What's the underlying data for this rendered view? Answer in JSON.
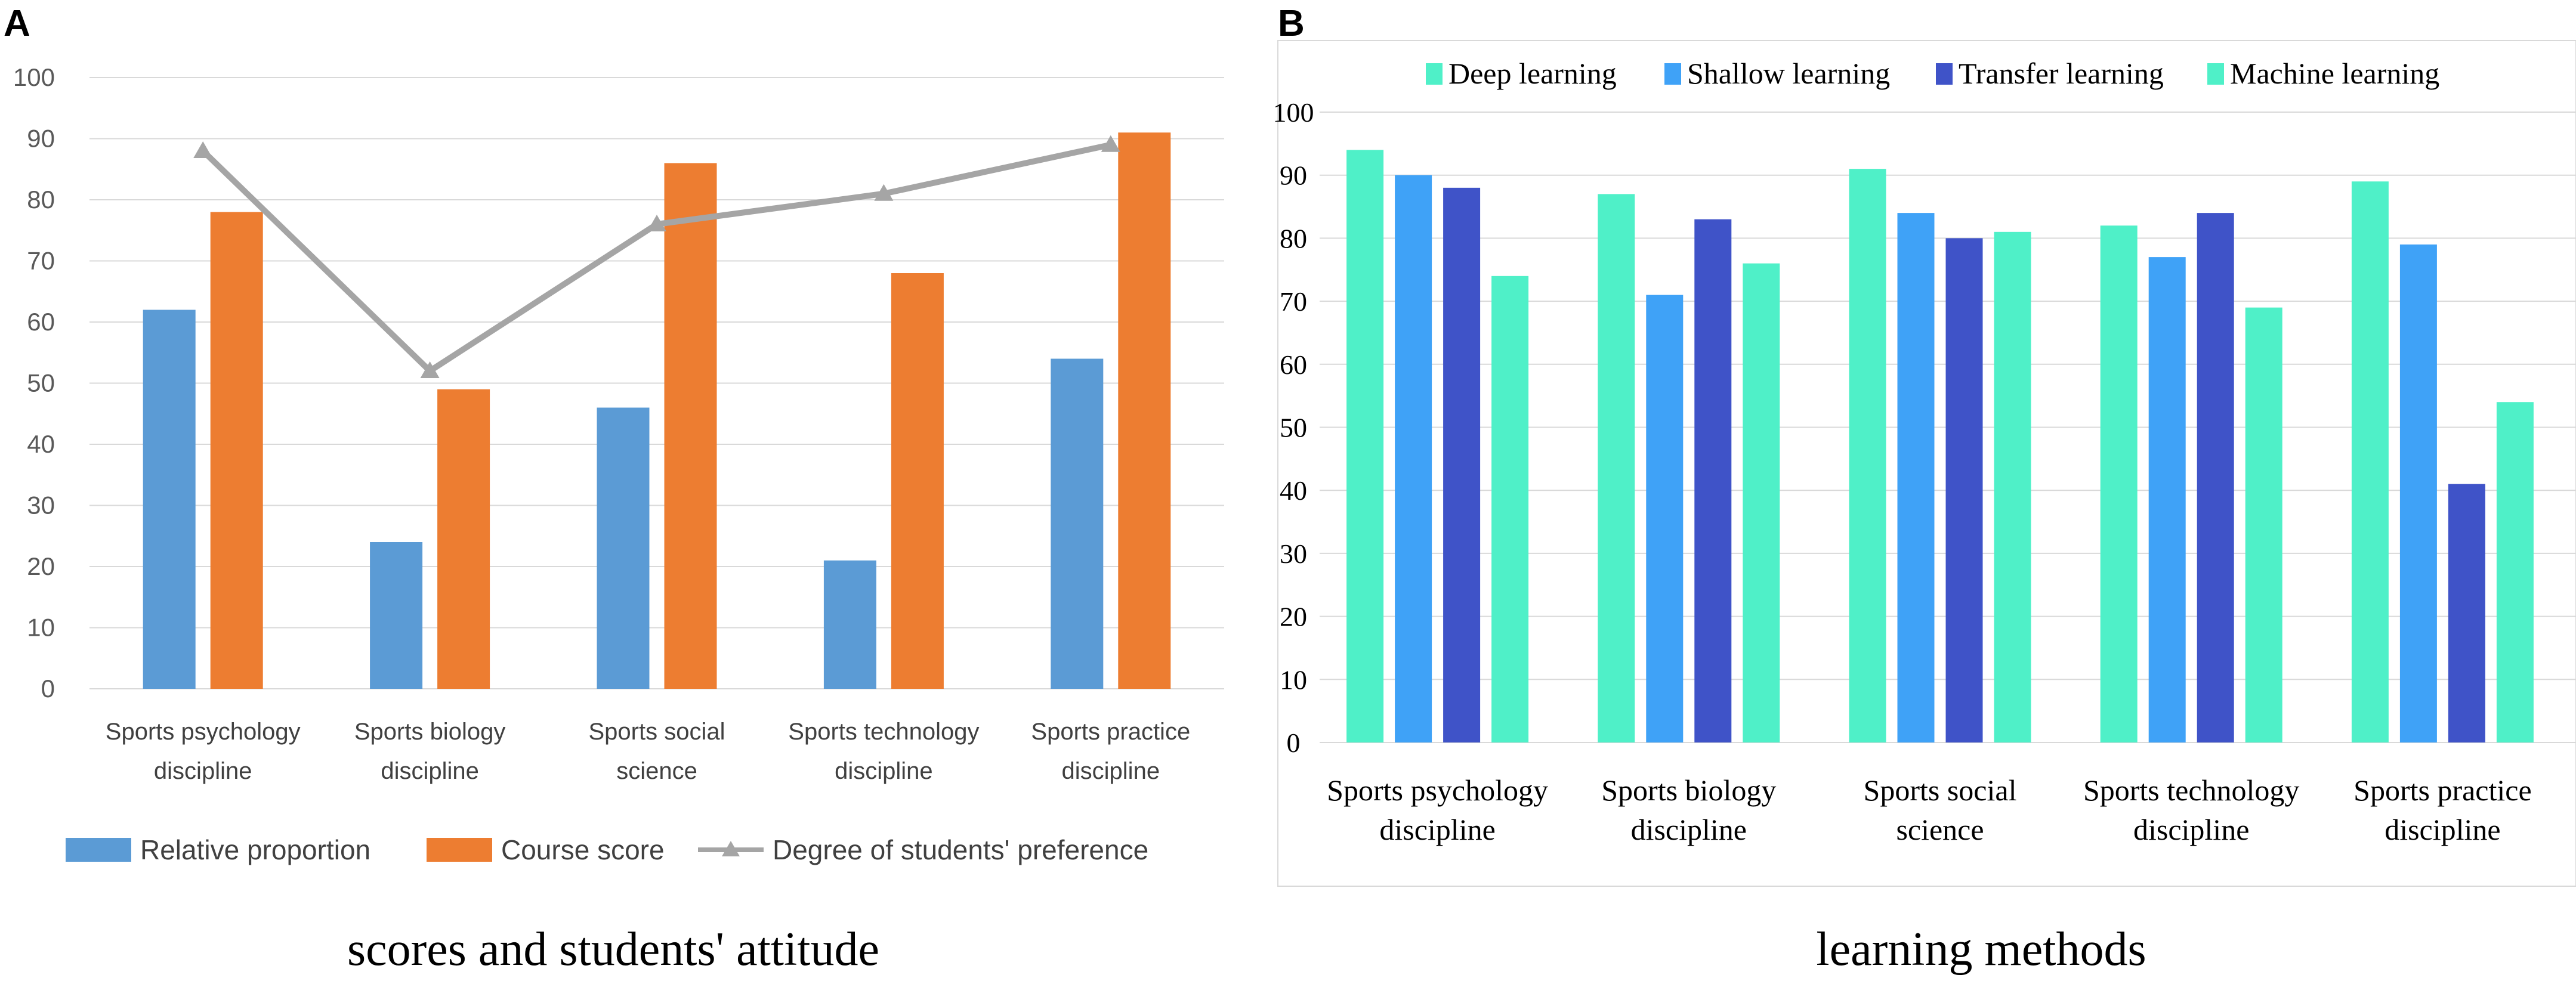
{
  "panels": {
    "a_label": "A",
    "b_label": "B",
    "a_caption": "scores and students' attitude",
    "b_caption": "learning methods"
  },
  "chart_data": [
    {
      "type": "bar",
      "title": "",
      "xlabel": "",
      "ylabel": "",
      "ylim": [
        0,
        100
      ],
      "yticks": [
        0,
        10,
        20,
        30,
        40,
        50,
        60,
        70,
        80,
        90,
        100
      ],
      "categories": [
        [
          "Sports psychology",
          "discipline"
        ],
        [
          "Sports biology",
          "discipline"
        ],
        [
          "Sports social",
          "science"
        ],
        [
          "Sports technology",
          "discipline"
        ],
        [
          "Sports practice",
          "discipline"
        ]
      ],
      "series": [
        {
          "name": "Relative proportion",
          "kind": "bar",
          "color": "#5b9bd5",
          "values": [
            62,
            24,
            46,
            21,
            54
          ]
        },
        {
          "name": "Course score",
          "kind": "bar",
          "color": "#ed7d31",
          "values": [
            78,
            49,
            86,
            68,
            91
          ]
        },
        {
          "name": "Degree of students' preference",
          "kind": "line",
          "marker": "triangle",
          "color": "#a5a5a5",
          "values": [
            88,
            52,
            76,
            81,
            89
          ]
        }
      ],
      "grid": true,
      "legend": "bottom"
    },
    {
      "type": "bar",
      "title": "",
      "xlabel": "",
      "ylabel": "",
      "ylim": [
        0,
        100
      ],
      "yticks": [
        0,
        10,
        20,
        30,
        40,
        50,
        60,
        70,
        80,
        90,
        100
      ],
      "categories": [
        [
          "Sports psychology",
          "discipline"
        ],
        [
          "Sports biology",
          "discipline"
        ],
        [
          "Sports social",
          "science"
        ],
        [
          "Sports technology",
          "discipline"
        ],
        [
          "Sports practice",
          "discipline"
        ]
      ],
      "series": [
        {
          "name": "Deep learning",
          "color": "#4ff0c8",
          "values": [
            94,
            87,
            91,
            82,
            89
          ]
        },
        {
          "name": "Shallow learning",
          "color": "#3fa2f7",
          "values": [
            90,
            71,
            84,
            77,
            79
          ]
        },
        {
          "name": "Transfer learning",
          "color": "#3f53c8",
          "values": [
            88,
            83,
            80,
            84,
            41
          ]
        },
        {
          "name": "Machine learning",
          "color": "#4ff0c8",
          "values": [
            74,
            76,
            81,
            69,
            54
          ]
        }
      ],
      "grid": true,
      "legend": "top"
    }
  ]
}
